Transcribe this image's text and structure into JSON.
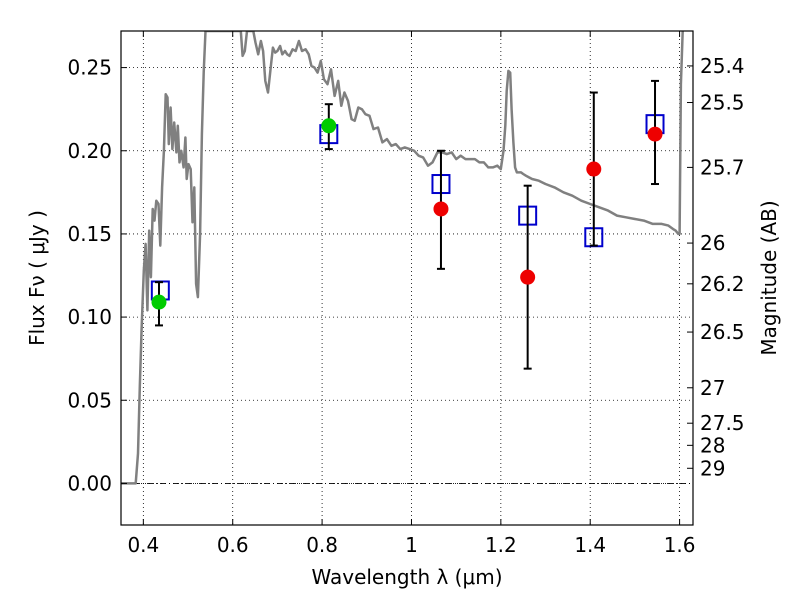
{
  "chart_data": {
    "type": "scatter",
    "xlabel": "Wavelength  λ (μm)",
    "ylabel": "Flux  Fν  ( μJy )",
    "ylabel_right": "Magnitude (AB)",
    "xlim": [
      0.35,
      1.63
    ],
    "ylim": [
      -0.025,
      0.272
    ],
    "grid": true,
    "x_ticks": [
      0.4,
      0.6,
      0.8,
      1.0,
      1.2,
      1.4,
      1.6
    ],
    "x_tick_labels": [
      "0.4",
      "0.6",
      "0.8",
      "1",
      "1.2",
      "1.4",
      "1.6"
    ],
    "y_ticks": [
      0.0,
      0.05,
      0.1,
      0.15,
      0.2,
      0.25
    ],
    "y_tick_labels": [
      "0.00",
      "0.05",
      "0.10",
      "0.15",
      "0.20",
      "0.25"
    ],
    "magnitude_ticks": [
      {
        "label": "25.4",
        "flux": 0.251
      },
      {
        "label": "25.5",
        "flux": 0.229
      },
      {
        "label": "25.7",
        "flux": 0.19
      },
      {
        "label": "26",
        "flux": 0.1445
      },
      {
        "label": "26.2",
        "flux": 0.12
      },
      {
        "label": "26.5",
        "flux": 0.091
      },
      {
        "label": "27",
        "flux": 0.0575
      },
      {
        "label": "27.5",
        "flux": 0.0362
      },
      {
        "label": "28",
        "flux": 0.0229
      },
      {
        "label": "29",
        "flux": 0.0091
      }
    ],
    "series": [
      {
        "name": "model SED",
        "kind": "line",
        "color": "#808080",
        "x": [
          0.35,
          0.383,
          0.388,
          0.392,
          0.396,
          0.401,
          0.405,
          0.409,
          0.413,
          0.417,
          0.421,
          0.425,
          0.429,
          0.434,
          0.438,
          0.442,
          0.446,
          0.45,
          0.454,
          0.457,
          0.461,
          0.465,
          0.469,
          0.474,
          0.477,
          0.481,
          0.485,
          0.49,
          0.494,
          0.497,
          0.501,
          0.506,
          0.51,
          0.514,
          0.518,
          0.522,
          0.527,
          0.531,
          0.535,
          0.539,
          0.544,
          0.548,
          0.553,
          0.558,
          0.563,
          0.568,
          0.574,
          0.58,
          0.585,
          0.59,
          0.596,
          0.601,
          0.607,
          0.613,
          0.618,
          0.622,
          0.627,
          0.632,
          0.636,
          0.641,
          0.646,
          0.651,
          0.657,
          0.663,
          0.668,
          0.673,
          0.679,
          0.685,
          0.69,
          0.695,
          0.7,
          0.706,
          0.711,
          0.717,
          0.722,
          0.727,
          0.734,
          0.741,
          0.748,
          0.755,
          0.763,
          0.77,
          0.776,
          0.783,
          0.79,
          0.797,
          0.804,
          0.812,
          0.82,
          0.828,
          0.836,
          0.843,
          0.85,
          0.858,
          0.866,
          0.873,
          0.881,
          0.889,
          0.897,
          0.906,
          0.915,
          0.925,
          0.935,
          0.945,
          0.955,
          0.965,
          0.975,
          0.985,
          0.996,
          1.006,
          1.016,
          1.026,
          1.037,
          1.047,
          1.058,
          1.069,
          1.079,
          1.09,
          1.1,
          1.11,
          1.121,
          1.132,
          1.142,
          1.152,
          1.162,
          1.172,
          1.182,
          1.192,
          1.2,
          1.206,
          1.21,
          1.213,
          1.217,
          1.221,
          1.224,
          1.228,
          1.232,
          1.236,
          1.24,
          1.245,
          1.25,
          1.256,
          1.263,
          1.27,
          1.285,
          1.3,
          1.32,
          1.34,
          1.36,
          1.38,
          1.4,
          1.42,
          1.44,
          1.46,
          1.48,
          1.5,
          1.52,
          1.54,
          1.56,
          1.575,
          1.585,
          1.591,
          1.597,
          1.6,
          1.603,
          1.607
        ],
        "y": [
          0.0,
          0.0,
          0.018,
          0.058,
          0.093,
          0.128,
          0.144,
          0.104,
          0.152,
          0.124,
          0.165,
          0.158,
          0.17,
          0.168,
          0.143,
          0.178,
          0.2,
          0.234,
          0.232,
          0.204,
          0.226,
          0.201,
          0.217,
          0.199,
          0.215,
          0.193,
          0.2,
          0.19,
          0.208,
          0.183,
          0.192,
          0.189,
          0.157,
          0.178,
          0.12,
          0.112,
          0.15,
          0.21,
          0.247,
          0.272,
          0.272,
          0.272,
          0.272,
          0.272,
          0.272,
          0.272,
          0.272,
          0.272,
          0.272,
          0.272,
          0.272,
          0.272,
          0.272,
          0.272,
          0.272,
          0.257,
          0.26,
          0.272,
          0.272,
          0.272,
          0.272,
          0.265,
          0.258,
          0.266,
          0.26,
          0.242,
          0.235,
          0.25,
          0.262,
          0.259,
          0.26,
          0.263,
          0.258,
          0.26,
          0.258,
          0.257,
          0.261,
          0.26,
          0.266,
          0.26,
          0.261,
          0.258,
          0.251,
          0.25,
          0.247,
          0.254,
          0.243,
          0.24,
          0.249,
          0.233,
          0.242,
          0.227,
          0.235,
          0.23,
          0.219,
          0.218,
          0.226,
          0.225,
          0.222,
          0.221,
          0.213,
          0.214,
          0.205,
          0.207,
          0.203,
          0.204,
          0.201,
          0.202,
          0.201,
          0.2,
          0.197,
          0.196,
          0.191,
          0.193,
          0.199,
          0.199,
          0.198,
          0.199,
          0.195,
          0.197,
          0.195,
          0.195,
          0.195,
          0.193,
          0.193,
          0.19,
          0.19,
          0.191,
          0.189,
          0.2,
          0.215,
          0.236,
          0.248,
          0.247,
          0.225,
          0.205,
          0.19,
          0.187,
          0.187,
          0.187,
          0.186,
          0.185,
          0.184,
          0.183,
          0.182,
          0.18,
          0.178,
          0.175,
          0.173,
          0.17,
          0.168,
          0.166,
          0.164,
          0.161,
          0.16,
          0.159,
          0.158,
          0.156,
          0.156,
          0.155,
          0.153,
          0.152,
          0.15,
          0.15,
          0.24,
          0.272
        ]
      },
      {
        "name": "blue squares",
        "kind": "marker",
        "marker": "open-square",
        "color": "#0000cc",
        "x": [
          0.438,
          0.815,
          1.066,
          1.26,
          1.408,
          1.545
        ],
        "y": [
          0.116,
          0.21,
          0.18,
          0.161,
          0.148,
          0.216
        ]
      },
      {
        "name": "green circles",
        "kind": "marker",
        "marker": "filled-circle",
        "color": "#00cc00",
        "x": [
          0.435,
          0.815
        ],
        "y": [
          0.109,
          0.215
        ]
      },
      {
        "name": "red circles",
        "kind": "marker",
        "marker": "filled-circle",
        "color": "#ee0000",
        "x": [
          1.066,
          1.26,
          1.408,
          1.545
        ],
        "y": [
          0.165,
          0.124,
          0.189,
          0.21
        ]
      }
    ],
    "errorbars": [
      {
        "x": 0.435,
        "low": 0.095,
        "high": 0.121
      },
      {
        "x": 0.815,
        "low": 0.201,
        "high": 0.228
      },
      {
        "x": 1.066,
        "low": 0.129,
        "high": 0.2
      },
      {
        "x": 1.26,
        "low": 0.069,
        "high": 0.179
      },
      {
        "x": 1.408,
        "low": 0.143,
        "high": 0.235
      },
      {
        "x": 1.545,
        "low": 0.18,
        "high": 0.242
      }
    ]
  }
}
